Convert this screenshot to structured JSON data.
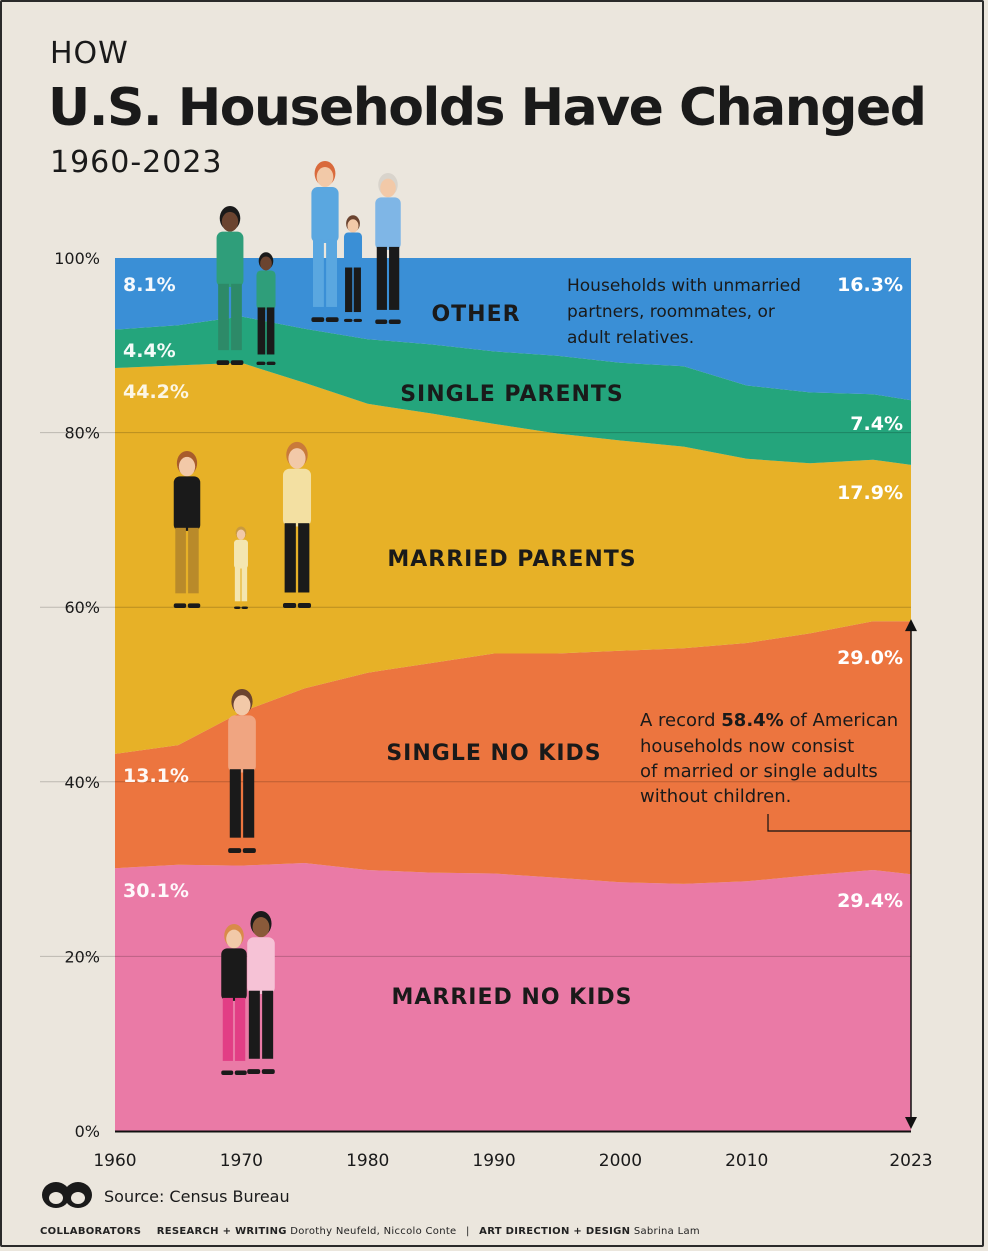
{
  "header": {
    "kicker": "HOW",
    "title": "U.S. Households Have Changed",
    "years": "1960-2023"
  },
  "chart_data": {
    "type": "area",
    "stacked": true,
    "percent": true,
    "xlim": [
      1960,
      2023
    ],
    "ylim": [
      0,
      100
    ],
    "x_ticks": [
      "1960",
      "1970",
      "1980",
      "1990",
      "2000",
      "2010",
      "2023"
    ],
    "y_ticks": [
      "0%",
      "20%",
      "40%",
      "60%",
      "80%",
      "100%"
    ],
    "x": [
      1960,
      1965,
      1970,
      1975,
      1980,
      1985,
      1990,
      1995,
      2000,
      2005,
      2010,
      2015,
      2020,
      2023
    ],
    "series": [
      {
        "name": "MARRIED NO KIDS",
        "color": "#ea7aa6",
        "values": [
          30.1,
          30.5,
          30.4,
          30.7,
          29.9,
          29.6,
          29.5,
          29.0,
          28.5,
          28.3,
          28.6,
          29.3,
          29.9,
          29.4
        ]
      },
      {
        "name": "SINGLE NO KIDS",
        "color": "#ec753f",
        "values": [
          13.1,
          13.7,
          17.6,
          20.0,
          22.6,
          24.0,
          25.2,
          25.7,
          26.5,
          27.0,
          27.3,
          27.7,
          28.5,
          29.0
        ]
      },
      {
        "name": "MARRIED PARENTS",
        "color": "#e7b127",
        "values": [
          44.2,
          43.5,
          40.0,
          35.0,
          30.8,
          28.6,
          26.3,
          25.2,
          24.1,
          23.1,
          21.1,
          19.5,
          18.5,
          17.9
        ]
      },
      {
        "name": "SINGLE PARENTS",
        "color": "#24a57c",
        "values": [
          4.4,
          4.6,
          5.3,
          6.2,
          7.4,
          7.9,
          8.3,
          8.9,
          8.9,
          9.2,
          8.4,
          8.1,
          7.5,
          7.4
        ]
      },
      {
        "name": "OTHER",
        "color": "#3a8fd6",
        "values": [
          8.1,
          7.7,
          6.7,
          8.1,
          9.3,
          9.9,
          10.7,
          11.2,
          12.0,
          12.4,
          14.6,
          15.4,
          15.6,
          16.3
        ]
      }
    ],
    "labels": {
      "start": [
        "30.1%",
        "13.1%",
        "44.2%",
        "4.4%",
        "8.1%"
      ],
      "end": [
        "29.4%",
        "29.0%",
        "17.9%",
        "7.4%",
        "16.3%"
      ]
    },
    "annotations": {
      "other_note": [
        "Households with unmarried",
        "partners, roommates, or",
        "adult relatives."
      ],
      "record_pre": "A record ",
      "record_value": "58.4%",
      "record_post": " of American",
      "record_lines": [
        "households now consist",
        "of married or single adults",
        "without children."
      ]
    }
  },
  "footer": {
    "source": "Source: Census Bureau",
    "brand": "COLLABORATORS",
    "research_label": "RESEARCH + WRITING",
    "research_names": "Dorothy Neufeld, Niccolo Conte",
    "divider": "|",
    "design_label": "ART DIRECTION + DESIGN",
    "design_names": "Sabrina Lam"
  }
}
